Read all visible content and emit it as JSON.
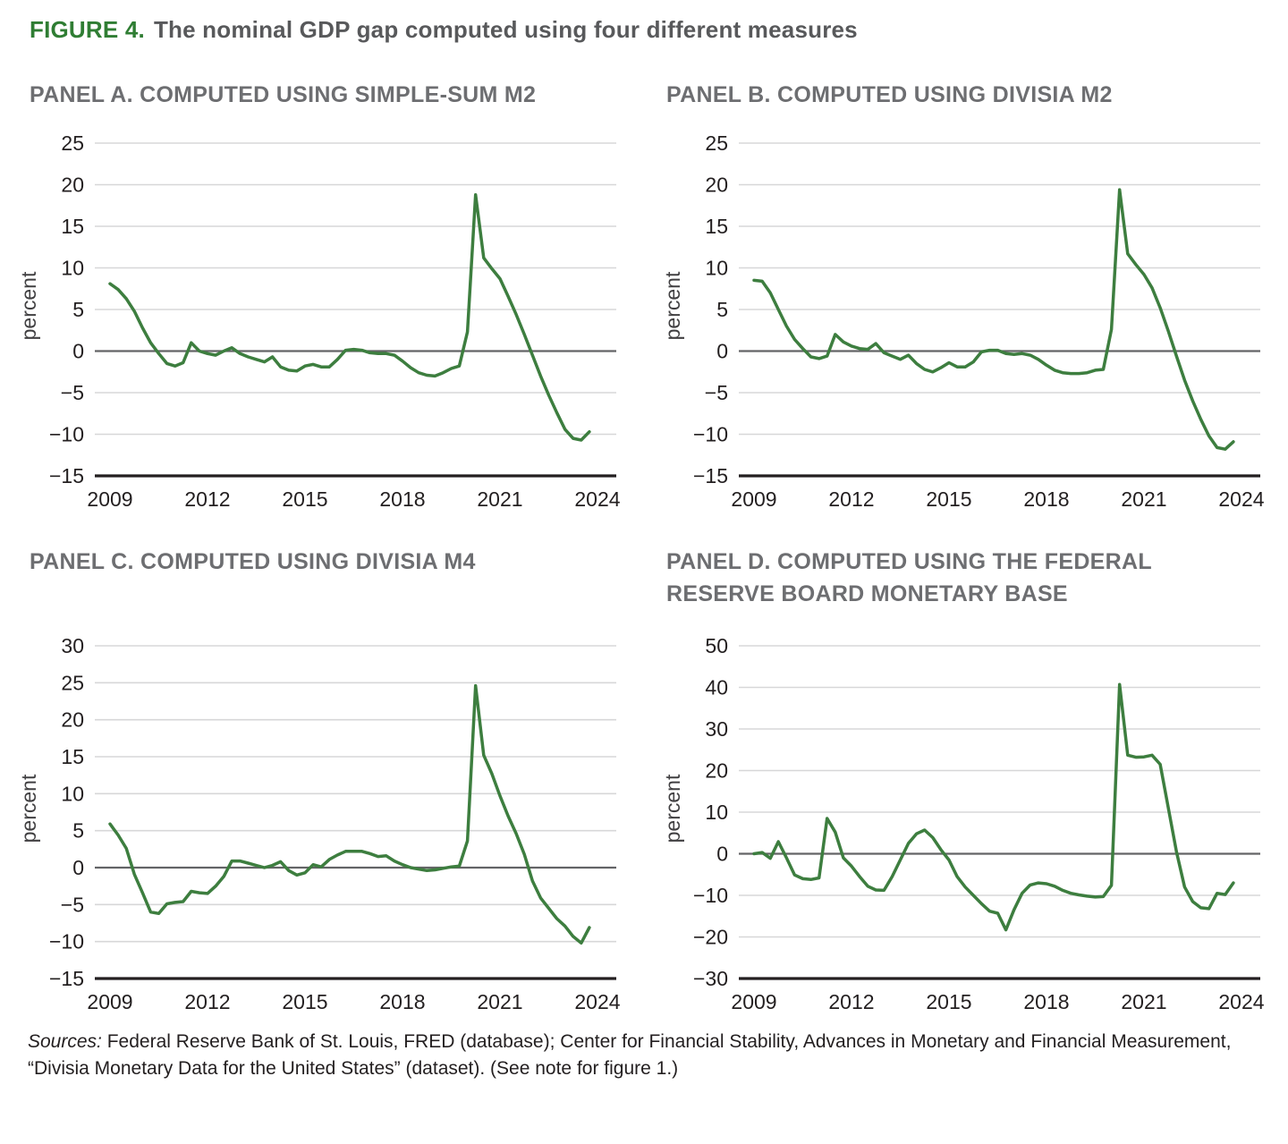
{
  "figure": {
    "label": "FIGURE 4.",
    "title": "The nominal GDP gap computed using four different measures"
  },
  "sources": {
    "prefix": "Sources:",
    "line1": " Federal Reserve Bank of St. Louis, FRED (database); Center for Financial Stability, Advances in Monetary and Financial Measurement,",
    "line2": "“Divisia Monetary Data for the United States” (dataset). (See note for figure 1.)"
  },
  "colors": {
    "line_green": "#3d7e3f",
    "figure_label_green": "#2f7d33",
    "panel_title_gray": "#6d6e71",
    "tick_text": "#231f20",
    "grid_light": "#d7d7d8",
    "zero_line": "#636466",
    "axis_black": "#231f20"
  },
  "chart_data": [
    {
      "type": "line",
      "title": "PANEL A. COMPUTED USING SIMPLE-SUM M2",
      "ylabel": "percent",
      "x_start": 2009,
      "x_step": 0.25,
      "xticks": [
        2009,
        2012,
        2015,
        2018,
        2021,
        2024
      ],
      "ylim": [
        -15,
        25
      ],
      "yticks": [
        25,
        20,
        15,
        10,
        5,
        0,
        -5,
        -10,
        -15
      ],
      "grid": true,
      "legend": "none",
      "values": [
        8.1,
        7.4,
        6.3,
        4.8,
        2.8,
        1.0,
        -0.3,
        -1.5,
        -1.8,
        -1.4,
        1.0,
        0.0,
        -0.3,
        -0.5,
        0.0,
        0.4,
        -0.3,
        -0.7,
        -1.0,
        -1.3,
        -0.7,
        -1.9,
        -2.3,
        -2.4,
        -1.8,
        -1.6,
        -1.9,
        -1.9,
        -1.0,
        0.1,
        0.2,
        0.1,
        -0.2,
        -0.3,
        -0.3,
        -0.5,
        -1.2,
        -2.0,
        -2.6,
        -2.9,
        -3.0,
        -2.6,
        -2.1,
        -1.8,
        2.3,
        18.8,
        11.2,
        9.9,
        8.7,
        6.6,
        4.4,
        2.0,
        -0.5,
        -3.0,
        -5.3,
        -7.4,
        -9.4,
        -10.5,
        -10.7,
        -9.7
      ]
    },
    {
      "type": "line",
      "title": "PANEL B. COMPUTED USING DIVISIA M2",
      "ylabel": "percent",
      "x_start": 2009,
      "x_step": 0.25,
      "xticks": [
        2009,
        2012,
        2015,
        2018,
        2021,
        2024
      ],
      "ylim": [
        -15,
        25
      ],
      "yticks": [
        25,
        20,
        15,
        10,
        5,
        0,
        -5,
        -10,
        -15
      ],
      "grid": true,
      "legend": "none",
      "values": [
        8.5,
        8.4,
        7.0,
        5.0,
        3.0,
        1.4,
        0.3,
        -0.7,
        -0.9,
        -0.6,
        2.0,
        1.1,
        0.6,
        0.3,
        0.2,
        0.9,
        -0.2,
        -0.6,
        -1.0,
        -0.5,
        -1.5,
        -2.2,
        -2.5,
        -2.0,
        -1.4,
        -1.9,
        -1.9,
        -1.3,
        -0.1,
        0.1,
        0.1,
        -0.3,
        -0.4,
        -0.3,
        -0.5,
        -1.0,
        -1.7,
        -2.3,
        -2.6,
        -2.7,
        -2.7,
        -2.6,
        -2.3,
        -2.2,
        2.6,
        19.4,
        11.7,
        10.4,
        9.2,
        7.6,
        5.2,
        2.4,
        -0.6,
        -3.5,
        -6.0,
        -8.2,
        -10.2,
        -11.6,
        -11.8,
        -10.9
      ]
    },
    {
      "type": "line",
      "title": "PANEL C. COMPUTED USING DIVISIA M4",
      "ylabel": "percent",
      "x_start": 2009,
      "x_step": 0.25,
      "xticks": [
        2009,
        2012,
        2015,
        2018,
        2021,
        2024
      ],
      "ylim": [
        -15,
        30
      ],
      "yticks": [
        30,
        25,
        20,
        15,
        10,
        5,
        0,
        -5,
        -10,
        -15
      ],
      "grid": true,
      "legend": "none",
      "values": [
        5.9,
        4.4,
        2.6,
        -0.9,
        -3.4,
        -6.0,
        -6.2,
        -4.9,
        -4.7,
        -4.6,
        -3.2,
        -3.4,
        -3.5,
        -2.5,
        -1.2,
        0.9,
        0.9,
        0.6,
        0.3,
        0.0,
        0.3,
        0.8,
        -0.4,
        -1.0,
        -0.7,
        0.4,
        0.1,
        1.1,
        1.7,
        2.2,
        2.2,
        2.2,
        1.9,
        1.5,
        1.6,
        0.9,
        0.4,
        0.0,
        -0.2,
        -0.4,
        -0.3,
        -0.1,
        0.1,
        0.2,
        3.6,
        24.6,
        15.2,
        12.7,
        9.7,
        7.0,
        4.6,
        1.8,
        -1.8,
        -4.1,
        -5.5,
        -6.9,
        -7.9,
        -9.3,
        -10.2,
        -8.1
      ]
    },
    {
      "type": "line",
      "title": [
        "PANEL D. COMPUTED USING THE FEDERAL",
        "RESERVE BOARD MONETARY BASE"
      ],
      "ylabel": "percent",
      "x_start": 2009,
      "x_step": 0.25,
      "xticks": [
        2009,
        2012,
        2015,
        2018,
        2021,
        2024
      ],
      "ylim": [
        -30,
        50
      ],
      "yticks": [
        50,
        40,
        30,
        20,
        10,
        0,
        -10,
        -20,
        -30
      ],
      "grid": true,
      "legend": "none",
      "values": [
        0.0,
        0.3,
        -1.1,
        2.9,
        -1.0,
        -5.1,
        -6.0,
        -6.2,
        -5.8,
        8.5,
        5.2,
        -1.0,
        -3.0,
        -5.5,
        -7.8,
        -8.7,
        -8.8,
        -5.5,
        -1.5,
        2.5,
        4.8,
        5.7,
        3.9,
        1.0,
        -1.5,
        -5.5,
        -8.0,
        -10.0,
        -12.0,
        -13.8,
        -14.3,
        -18.3,
        -13.5,
        -9.5,
        -7.5,
        -7.0,
        -7.2,
        -7.8,
        -8.8,
        -9.5,
        -9.9,
        -10.2,
        -10.4,
        -10.3,
        -7.6,
        40.7,
        23.7,
        23.2,
        23.3,
        23.7,
        21.5,
        11.0,
        0.5,
        -8.0,
        -11.5,
        -13.0,
        -13.2,
        -9.5,
        -9.8,
        -7.0
      ]
    }
  ]
}
